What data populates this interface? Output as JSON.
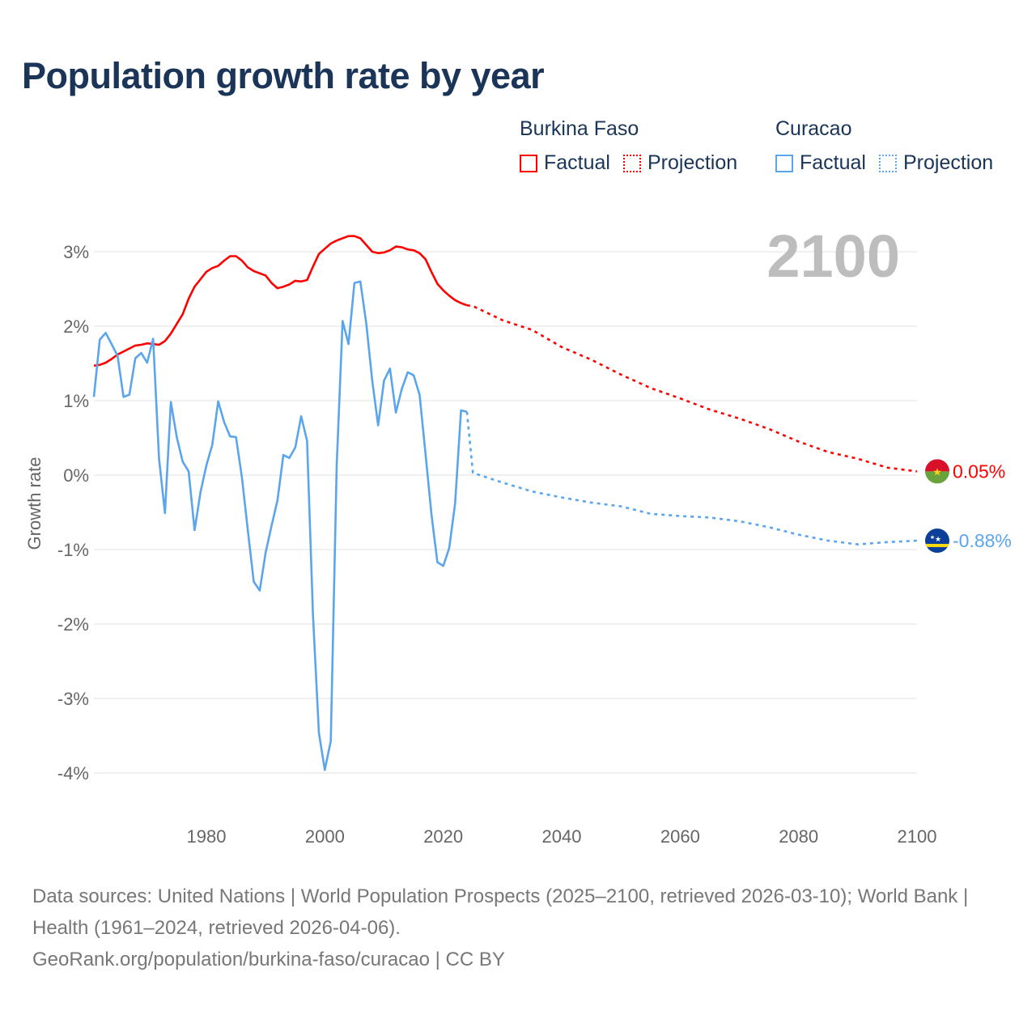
{
  "title": "Population growth rate by year",
  "legend": {
    "groups": [
      {
        "name": "Burkina Faso",
        "factual": "Factual",
        "projection": "Projection",
        "color": "#ff0000"
      },
      {
        "name": "Curacao",
        "factual": "Factual",
        "projection": "Projection",
        "color": "#5aa5ec"
      }
    ]
  },
  "year_label": "2100",
  "footer": {
    "sources": "Data sources: United Nations | World Population Prospects (2025–2100, retrieved 2026-03-10); World Bank | Health (1961–2024, retrieved 2026-04-06).",
    "link": "GeoRank.org/population/burkina-faso/curacao | CC BY"
  },
  "chart_data": {
    "type": "line",
    "title": "Population growth rate by year",
    "xlabel": "",
    "ylabel": "Growth rate",
    "xlim": [
      1961,
      2100
    ],
    "ylim": [
      -4,
      3
    ],
    "x_ticks": [
      "1980",
      "2000",
      "2020",
      "2040",
      "2060",
      "2080",
      "2100"
    ],
    "y_ticks": [
      "3%",
      "2%",
      "1%",
      "0%",
      "-1%",
      "-2%",
      "-3%",
      "-4%"
    ],
    "grid": true,
    "series": [
      {
        "name": "Burkina Faso",
        "color": "#ff0000",
        "end_label": "0.05%",
        "factual": {
          "x": [
            1961,
            1962,
            1963,
            1964,
            1965,
            1966,
            1967,
            1968,
            1969,
            1970,
            1971,
            1972,
            1973,
            1974,
            1975,
            1976,
            1977,
            1978,
            1979,
            1980,
            1981,
            1982,
            1983,
            1984,
            1985,
            1986,
            1987,
            1988,
            1989,
            1990,
            1991,
            1992,
            1993,
            1994,
            1995,
            1996,
            1997,
            1998,
            1999,
            2000,
            2001,
            2002,
            2003,
            2004,
            2005,
            2006,
            2007,
            2008,
            2009,
            2010,
            2011,
            2012,
            2013,
            2014,
            2015,
            2016,
            2017,
            2018,
            2019,
            2020,
            2021,
            2022,
            2023,
            2024
          ],
          "y": [
            1.47,
            1.48,
            1.51,
            1.56,
            1.62,
            1.66,
            1.7,
            1.74,
            1.75,
            1.77,
            1.76,
            1.75,
            1.8,
            1.9,
            2.03,
            2.16,
            2.37,
            2.53,
            2.63,
            2.73,
            2.78,
            2.81,
            2.88,
            2.94,
            2.94,
            2.88,
            2.79,
            2.74,
            2.71,
            2.68,
            2.58,
            2.51,
            2.53,
            2.56,
            2.61,
            2.6,
            2.62,
            2.8,
            2.97,
            3.04,
            3.11,
            3.15,
            3.18,
            3.21,
            3.21,
            3.18,
            3.09,
            3.0,
            2.98,
            2.99,
            3.02,
            3.07,
            3.06,
            3.03,
            3.02,
            2.98,
            2.9,
            2.73,
            2.57,
            2.48,
            2.41,
            2.35,
            2.31,
            2.28
          ]
        },
        "projection": {
          "x": [
            2024,
            2025,
            2030,
            2035,
            2040,
            2045,
            2050,
            2055,
            2060,
            2065,
            2070,
            2075,
            2080,
            2085,
            2090,
            2095,
            2100
          ],
          "y": [
            2.28,
            2.27,
            2.08,
            1.95,
            1.72,
            1.55,
            1.35,
            1.17,
            1.03,
            0.88,
            0.76,
            0.62,
            0.45,
            0.31,
            0.22,
            0.1,
            0.05
          ]
        }
      },
      {
        "name": "Curacao",
        "color": "#5aa5ec",
        "end_label": "-0.88%",
        "factual": {
          "x": [
            1961,
            1962,
            1963,
            1964,
            1965,
            1966,
            1967,
            1968,
            1969,
            1970,
            1971,
            1972,
            1973,
            1974,
            1975,
            1976,
            1977,
            1978,
            1979,
            1980,
            1981,
            1982,
            1983,
            1984,
            1985,
            1986,
            1987,
            1988,
            1989,
            1990,
            1991,
            1992,
            1993,
            1994,
            1995,
            1996,
            1997,
            1998,
            1999,
            2000,
            2001,
            2002,
            2003,
            2004,
            2005,
            2006,
            2007,
            2008,
            2009,
            2010,
            2011,
            2012,
            2013,
            2014,
            2015,
            2016,
            2017,
            2018,
            2019,
            2020,
            2021,
            2022,
            2023,
            2024
          ],
          "y": [
            1.05,
            1.82,
            1.91,
            1.76,
            1.6,
            1.05,
            1.08,
            1.57,
            1.64,
            1.51,
            1.83,
            0.22,
            -0.51,
            0.98,
            0.51,
            0.18,
            0.05,
            -0.74,
            -0.23,
            0.13,
            0.41,
            0.99,
            0.71,
            0.52,
            0.51,
            -0.03,
            -0.74,
            -1.43,
            -1.55,
            -1.04,
            -0.68,
            -0.34,
            0.27,
            0.23,
            0.37,
            0.79,
            0.46,
            -1.88,
            -3.46,
            -3.96,
            -3.57,
            0.13,
            2.07,
            1.76,
            2.58,
            2.6,
            2.03,
            1.27,
            0.67,
            1.27,
            1.43,
            0.84,
            1.16,
            1.38,
            1.34,
            1.08,
            0.29,
            -0.52,
            -1.17,
            -1.22,
            -0.98,
            -0.38,
            0.87,
            0.85
          ]
        },
        "projection": {
          "x": [
            2024,
            2025,
            2030,
            2035,
            2040,
            2045,
            2050,
            2055,
            2060,
            2065,
            2070,
            2075,
            2080,
            2085,
            2090,
            2095,
            2100
          ],
          "y": [
            0.85,
            0.03,
            -0.1,
            -0.22,
            -0.3,
            -0.37,
            -0.42,
            -0.52,
            -0.55,
            -0.57,
            -0.62,
            -0.7,
            -0.8,
            -0.88,
            -0.93,
            -0.9,
            -0.88
          ]
        }
      }
    ]
  }
}
